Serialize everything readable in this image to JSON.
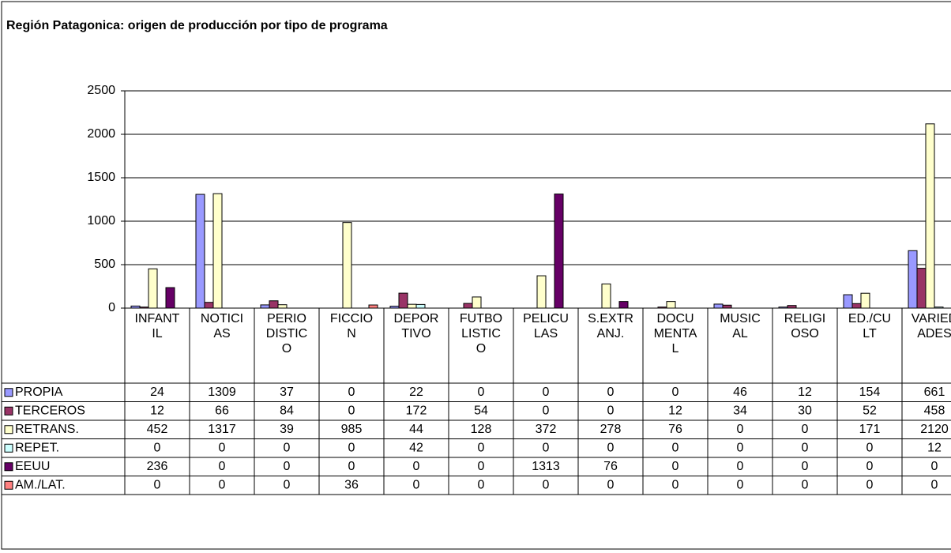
{
  "chart_data": {
    "type": "bar",
    "title": "Región Patagonica: origen de producción por tipo de programa",
    "categories": [
      "INFANTIL",
      "NOTICIAS",
      "PERIODISTICO",
      "FICCION",
      "DEPORTIVO",
      "FUTBOLISTICO",
      "PELICULAS",
      "S.EXTRANJ.",
      "DOCUMENTAL",
      "MUSICAL",
      "RELIGIOSO",
      "ED./CULT",
      "VARIEDADES"
    ],
    "series": [
      {
        "name": "PROPIA",
        "color": "#9999ff",
        "values": [
          24,
          1309,
          37,
          0,
          22,
          0,
          0,
          0,
          0,
          46,
          12,
          154,
          661
        ]
      },
      {
        "name": "TERCEROS",
        "color": "#993366",
        "values": [
          12,
          66,
          84,
          0,
          172,
          54,
          0,
          0,
          12,
          34,
          30,
          52,
          458
        ]
      },
      {
        "name": "RETRANS.",
        "color": "#ffffcc",
        "values": [
          452,
          1317,
          39,
          985,
          44,
          128,
          372,
          278,
          76,
          0,
          0,
          171,
          2120
        ]
      },
      {
        "name": "REPET.",
        "color": "#ccffff",
        "values": [
          0,
          0,
          0,
          0,
          42,
          0,
          0,
          0,
          0,
          0,
          0,
          0,
          12
        ]
      },
      {
        "name": "EEUU",
        "color": "#660066",
        "values": [
          236,
          0,
          0,
          0,
          0,
          0,
          1313,
          76,
          0,
          0,
          0,
          0,
          0
        ]
      },
      {
        "name": "AM./LAT.",
        "color": "#ff8080",
        "values": [
          0,
          0,
          0,
          36,
          0,
          0,
          0,
          0,
          0,
          0,
          0,
          0,
          0
        ]
      }
    ],
    "ylim": [
      0,
      2500
    ],
    "yticks": [
      0,
      500,
      1000,
      1500,
      2000,
      2500
    ],
    "grid": true
  }
}
